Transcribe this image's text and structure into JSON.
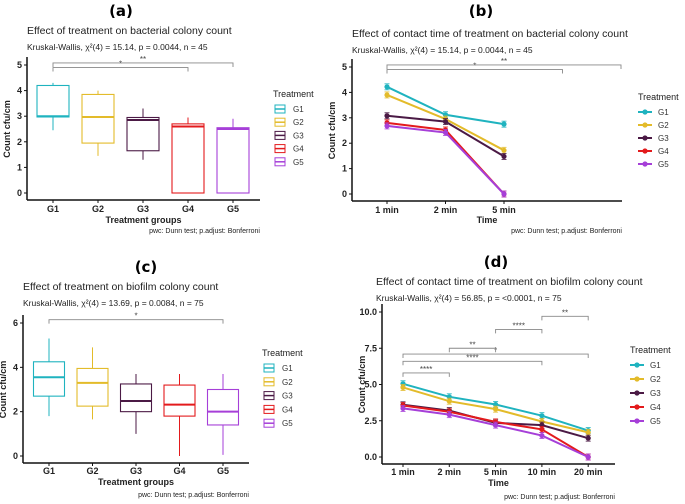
{
  "colors": {
    "G1": "#1fb3bf",
    "G2": "#e3bb2a",
    "G3": "#4b1a45",
    "G4": "#e31a1c",
    "G5": "#a63fd8"
  },
  "chart_data": [
    {
      "panel_label": "(a)",
      "type": "box",
      "title": "Effect of treatment on bacterial colony count",
      "subtitle": "Kruskal-Wallis, χ²(4) = 15.14, p = 0.0044, n = 45",
      "xlabel": "Treatment groups",
      "ylabel": "Count cfu/cm",
      "caption": "pwc: Dunn test; p.adjust: Bonferroni",
      "ylim": [
        0,
        5
      ],
      "yticks": [
        "0",
        "1",
        "2",
        "3",
        "4",
        "5"
      ],
      "categories": [
        "G1",
        "G2",
        "G3",
        "G4",
        "G5"
      ],
      "legend_title": "Treatment",
      "legend_position": "right",
      "boxes": [
        {
          "group": "G1",
          "min": 2.45,
          "q1": 2.97,
          "median": 3.0,
          "q3": 4.2,
          "max": 4.3
        },
        {
          "group": "G2",
          "min": 1.45,
          "q1": 1.95,
          "median": 2.97,
          "q3": 3.85,
          "max": 4.0
        },
        {
          "group": "G3",
          "min": 1.3,
          "q1": 1.65,
          "median": 2.85,
          "q3": 2.95,
          "max": 3.3
        },
        {
          "group": "G4",
          "min": 0,
          "q1": 0,
          "median": 2.6,
          "q3": 2.7,
          "max": 2.95
        },
        {
          "group": "G5",
          "min": 0,
          "q1": 0,
          "median": 2.5,
          "q3": 2.55,
          "max": 2.9
        }
      ],
      "brackets": [
        {
          "from": "G1",
          "to": "G4",
          "y": 4.9,
          "label": "*"
        },
        {
          "from": "G1",
          "to": "G5",
          "y": 5.08,
          "label": "**"
        }
      ]
    },
    {
      "panel_label": "(b)",
      "type": "line",
      "title": "Effect of contact time of treatment on bacterial colony count",
      "subtitle": "Kruskal-Wallis, χ²(4) = 15.14, p = 0.0044, n = 45",
      "xlabel": "Time",
      "ylabel": "Count cfu/cm",
      "caption": "pwc: Dunn test; p.adjust: Bonferroni",
      "ylim": [
        0,
        5
      ],
      "yticks": [
        "0",
        "1",
        "2",
        "3",
        "4",
        "5"
      ],
      "x": [
        "1 min",
        "2 min",
        "5 min"
      ],
      "legend_title": "Treatment",
      "legend_position": "right",
      "series": [
        {
          "name": "G1",
          "values": [
            4.22,
            3.12,
            2.75
          ]
        },
        {
          "name": "G2",
          "values": [
            3.9,
            2.95,
            1.72
          ]
        },
        {
          "name": "G3",
          "values": [
            3.08,
            2.85,
            1.48
          ]
        },
        {
          "name": "G4",
          "values": [
            2.8,
            2.52,
            0
          ]
        },
        {
          "name": "G5",
          "values": [
            2.68,
            2.42,
            0
          ]
        }
      ],
      "brackets": [
        {
          "from": 1,
          "to": 4,
          "y": 4.9,
          "label": "*"
        },
        {
          "from": 1,
          "to": 5,
          "y": 5.08,
          "label": "**"
        }
      ]
    },
    {
      "panel_label": "(c)",
      "type": "box",
      "title": "Effect of treatment on biofilm colony count",
      "subtitle": "Kruskal-Wallis, χ²(4) = 13.69, p = 0.0084, n = 75",
      "xlabel": "Treatment groups",
      "ylabel": "Count cfu/cm",
      "caption": "pwc: Dunn test; p.adjust: Bonferroni",
      "ylim": [
        0,
        6
      ],
      "yticks": [
        "0",
        "2",
        "4",
        "6"
      ],
      "categories": [
        "G1",
        "G2",
        "G3",
        "G4",
        "G5"
      ],
      "legend_title": "Treatment",
      "legend_position": "right",
      "boxes": [
        {
          "group": "G1",
          "min": 1.8,
          "q1": 2.7,
          "median": 3.55,
          "q3": 4.25,
          "max": 5.3
        },
        {
          "group": "G2",
          "min": 1.65,
          "q1": 2.25,
          "median": 3.3,
          "q3": 3.95,
          "max": 4.9
        },
        {
          "group": "G3",
          "min": 1.0,
          "q1": 2.0,
          "median": 2.48,
          "q3": 3.25,
          "max": 3.7
        },
        {
          "group": "G4",
          "min": 0,
          "q1": 1.8,
          "median": 2.32,
          "q3": 3.2,
          "max": 3.7
        },
        {
          "group": "G5",
          "min": 0.05,
          "q1": 1.4,
          "median": 2.0,
          "q3": 3.0,
          "max": 3.7
        }
      ],
      "brackets": [
        {
          "from": "G1",
          "to": "G5",
          "y": 6.15,
          "label": "*"
        }
      ]
    },
    {
      "panel_label": "(d)",
      "type": "line",
      "title": "Effect of contact time of treatment on biofilm colony count",
      "subtitle": "Kruskal-Wallis, χ²(4) = 56.85, p = <0.0001, n = 75",
      "xlabel": "Time",
      "ylabel": "Count cfu/cm",
      "caption": "pwc: Dunn test; p.adjust: Bonferroni",
      "ylim": [
        0,
        10
      ],
      "yticks": [
        "0.0",
        "2.5",
        "5.0",
        "7.5",
        "10.0"
      ],
      "x": [
        "1 min",
        "2 min",
        "5 min",
        "10 min",
        "20 min"
      ],
      "legend_title": "Treatment",
      "legend_position": "right",
      "series": [
        {
          "name": "G1",
          "values": [
            5.05,
            4.15,
            3.62,
            2.85,
            1.82
          ]
        },
        {
          "name": "G2",
          "values": [
            4.8,
            3.85,
            3.3,
            2.45,
            1.7
          ]
        },
        {
          "name": "G3",
          "values": [
            3.6,
            3.2,
            2.35,
            2.2,
            1.3
          ]
        },
        {
          "name": "G4",
          "values": [
            3.55,
            3.12,
            2.42,
            1.9,
            0
          ]
        },
        {
          "name": "G5",
          "values": [
            3.35,
            2.92,
            2.2,
            1.48,
            0
          ]
        }
      ],
      "brackets": [
        {
          "from": 1,
          "to": 2,
          "y": 5.8,
          "label": "****"
        },
        {
          "from": 1,
          "to": 4,
          "y": 6.6,
          "label": "****"
        },
        {
          "from": 1,
          "to": 5,
          "y": 7.1,
          "label": "*"
        },
        {
          "from": 2,
          "to": 3,
          "y": 7.5,
          "label": "**"
        },
        {
          "from": 3,
          "to": 4,
          "y": 8.8,
          "label": "****"
        },
        {
          "from": 4,
          "to": 5,
          "y": 9.7,
          "label": "**"
        }
      ]
    }
  ]
}
